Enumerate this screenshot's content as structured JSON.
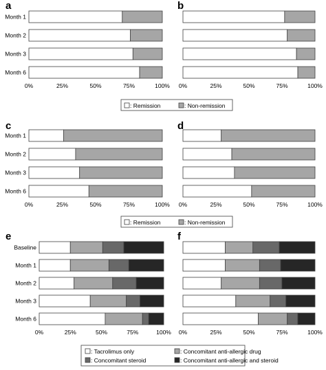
{
  "figure": {
    "colors": {
      "remission": "#ffffff",
      "non_remission": "#a6a6a6",
      "tacrolimus_only": "#ffffff",
      "concomitant_anti_allergic": "#a6a6a6",
      "concomitant_steroid": "#686868",
      "concomitant_anti_allergic_and_steroid": "#262626",
      "border": "#404040"
    }
  },
  "chart_data": [
    {
      "panel": "a",
      "type": "bar",
      "orientation": "horizontal",
      "stacked": true,
      "categories": [
        "Month 1",
        "Month 2",
        "Month 3",
        "Month 6"
      ],
      "series": [
        {
          "name": "Remission",
          "values": [
            70,
            76,
            78,
            83
          ]
        },
        {
          "name": "Non-remission",
          "values": [
            30,
            24,
            22,
            17
          ]
        }
      ],
      "xticks": [
        "0%",
        "25%",
        "50%",
        "75%",
        "100%"
      ],
      "xlim": [
        0,
        100
      ],
      "grid": false
    },
    {
      "panel": "b",
      "type": "bar",
      "orientation": "horizontal",
      "stacked": true,
      "categories": [
        "Month 1",
        "Month 2",
        "Month 3",
        "Month 6"
      ],
      "series": [
        {
          "name": "Remission",
          "values": [
            77,
            79,
            86,
            87
          ]
        },
        {
          "name": "Non-remission",
          "values": [
            23,
            21,
            14,
            13
          ]
        }
      ],
      "xticks": [
        "0%",
        "25%",
        "50%",
        "75%",
        "100%"
      ],
      "xlim": [
        0,
        100
      ],
      "grid": false
    },
    {
      "panel": "c",
      "type": "bar",
      "orientation": "horizontal",
      "stacked": true,
      "categories": [
        "Month 1",
        "Month 2",
        "Month 3",
        "Month 6"
      ],
      "series": [
        {
          "name": "Remission",
          "values": [
            26,
            35,
            38,
            45
          ]
        },
        {
          "name": "Non-remission",
          "values": [
            74,
            65,
            62,
            55
          ]
        }
      ],
      "xticks": [
        "0%",
        "25%",
        "50%",
        "75%",
        "100%"
      ],
      "xlim": [
        0,
        100
      ],
      "grid": false
    },
    {
      "panel": "d",
      "type": "bar",
      "orientation": "horizontal",
      "stacked": true,
      "categories": [
        "Month 1",
        "Month 2",
        "Month 3",
        "Month 6"
      ],
      "series": [
        {
          "name": "Remission",
          "values": [
            29,
            37,
            39,
            52
          ]
        },
        {
          "name": "Non-remission",
          "values": [
            71,
            63,
            61,
            48
          ]
        }
      ],
      "xticks": [
        "0%",
        "25%",
        "50%",
        "75%",
        "100%"
      ],
      "xlim": [
        0,
        100
      ],
      "grid": false
    },
    {
      "panel": "e",
      "type": "bar",
      "orientation": "horizontal",
      "stacked": true,
      "categories": [
        "Baseline",
        "Month 1",
        "Month 2",
        "Month 3",
        "Month 6"
      ],
      "series": [
        {
          "name": "Tacrolimus only",
          "values": [
            25,
            25,
            28,
            41,
            53
          ]
        },
        {
          "name": "Concomitant anti-allergic drug",
          "values": [
            26,
            31,
            31,
            29,
            30
          ]
        },
        {
          "name": "Concomitant steroid",
          "values": [
            17,
            16,
            19,
            11,
            5
          ]
        },
        {
          "name": "Concomitant anti-allergic and steroid",
          "values": [
            32,
            28,
            22,
            19,
            12
          ]
        }
      ],
      "xticks": [
        "0%",
        "25%",
        "50%",
        "75%",
        "100%"
      ],
      "xlim": [
        0,
        100
      ],
      "grid": false
    },
    {
      "panel": "f",
      "type": "bar",
      "orientation": "horizontal",
      "stacked": true,
      "categories": [
        "Baseline",
        "Month 1",
        "Month 2",
        "Month 3",
        "Month 6"
      ],
      "series": [
        {
          "name": "Tacrolimus only",
          "values": [
            32,
            32,
            29,
            40,
            57
          ]
        },
        {
          "name": "Concomitant anti-allergic drug",
          "values": [
            21,
            26,
            29,
            26,
            22
          ]
        },
        {
          "name": "Concomitant steroid",
          "values": [
            20,
            16,
            17,
            12,
            8
          ]
        },
        {
          "name": "Concomitant anti-allergic and steroid",
          "values": [
            27,
            26,
            25,
            22,
            13
          ]
        }
      ],
      "xticks": [
        "0%",
        "25%",
        "50%",
        "75%",
        "100%"
      ],
      "xlim": [
        0,
        100
      ],
      "grid": false
    }
  ],
  "legends": [
    {
      "id": "legend-remission-1",
      "items": [
        {
          "label": ": Remission",
          "color": "#ffffff"
        },
        {
          "label": ": Non-remission",
          "color": "#a6a6a6"
        }
      ]
    },
    {
      "id": "legend-remission-2",
      "items": [
        {
          "label": ": Remission",
          "color": "#ffffff"
        },
        {
          "label": ": Non-remission",
          "color": "#a6a6a6"
        }
      ]
    },
    {
      "id": "legend-treatment",
      "items": [
        {
          "label": ": Tacrolimus only",
          "color": "#ffffff"
        },
        {
          "label": ": Concomitant anti-allergic drug",
          "color": "#a6a6a6"
        },
        {
          "label": ": Concomitant steroid",
          "color": "#686868"
        },
        {
          "label": ": Concomitant anti-allergic and steroid",
          "color": "#262626"
        }
      ]
    }
  ]
}
